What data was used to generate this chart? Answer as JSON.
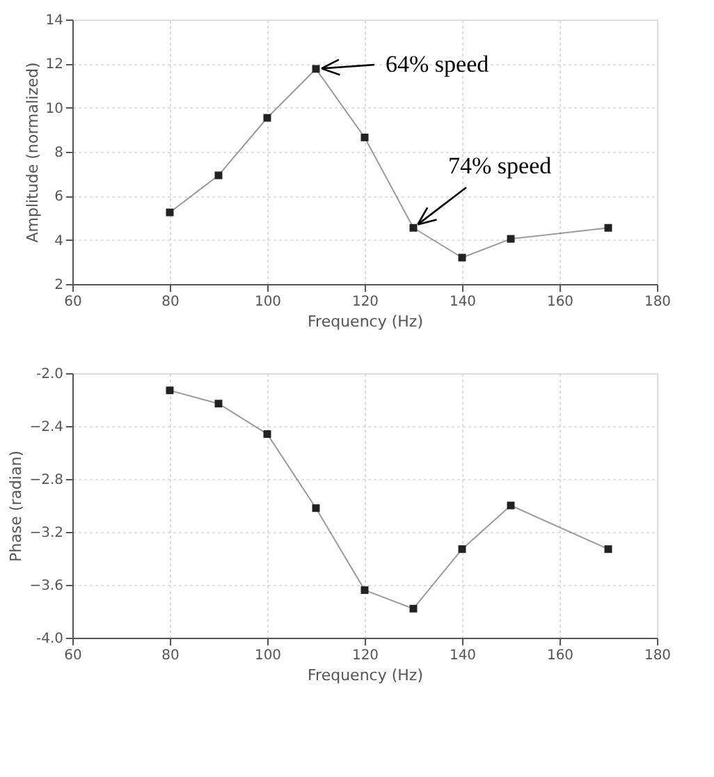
{
  "chart_data": [
    {
      "type": "line",
      "xlabel": "Frequency (Hz)",
      "ylabel": "Amplitude (normalized)",
      "x": [
        80,
        90,
        100,
        110,
        120,
        130,
        140,
        150,
        170
      ],
      "series": [
        {
          "color": "#222222",
          "values": [
            5.25,
            6.93,
            9.54,
            11.76,
            8.65,
            4.55,
            3.2,
            4.05,
            4.55
          ]
        }
      ],
      "xlim": [
        60,
        180
      ],
      "xticks": [
        60,
        80,
        100,
        120,
        140,
        160,
        180
      ],
      "ylim": [
        2,
        14
      ],
      "yticks": [
        2,
        4,
        6,
        8,
        10,
        12,
        14
      ],
      "annotations": [
        {
          "text": "64% speed",
          "x": 110,
          "y": 11.76
        },
        {
          "text": "74% speed",
          "x": 130,
          "y": 4.55
        }
      ],
      "grid": true,
      "marker": "square",
      "line_style": "solid"
    },
    {
      "type": "line",
      "xlabel": "Frequency (Hz)",
      "ylabel": "Phase (radian)",
      "x": [
        80,
        90,
        100,
        110,
        120,
        130,
        140,
        150,
        170
      ],
      "series": [
        {
          "color": "#222222",
          "values": [
            -2.13,
            -2.23,
            -2.46,
            -3.02,
            -3.64,
            -3.78,
            -3.33,
            -3.0,
            -3.33
          ]
        }
      ],
      "xlim": [
        60,
        180
      ],
      "xticks": [
        60,
        80,
        100,
        120,
        140,
        160,
        180
      ],
      "ylim": [
        -4.0,
        -2.0
      ],
      "yticks": [
        {
          "value": -4.0,
          "label": "-4.0"
        },
        -3.6,
        -3.2,
        -2.8,
        -2.4,
        {
          "value": -2.0,
          "label": "-2.0"
        }
      ],
      "grid": true,
      "marker": "square",
      "line_style": "solid"
    }
  ]
}
